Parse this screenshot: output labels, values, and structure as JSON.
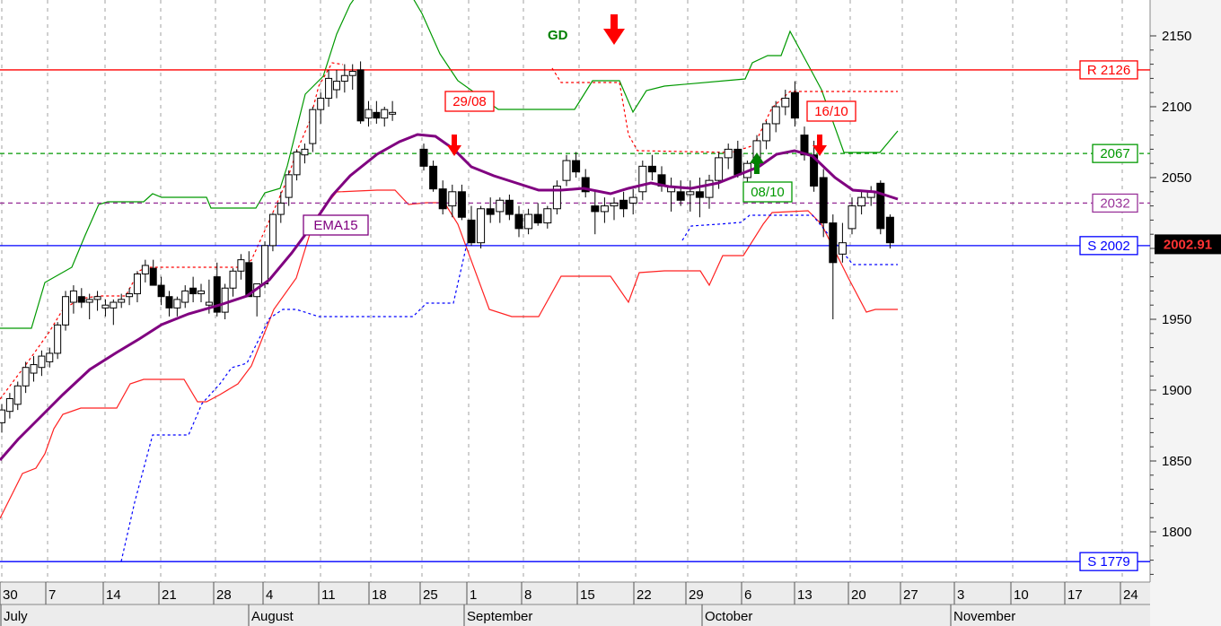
{
  "chart_data": {
    "type": "candlestick",
    "instrument_title": "GD",
    "ylim": [
      1770,
      2175
    ],
    "y_ticks": [
      1800,
      1850,
      1900,
      1950,
      2000,
      2050,
      2100,
      2150
    ],
    "x_day_labels": [
      "30",
      "7",
      "14",
      "21",
      "28",
      "4",
      "11",
      "18",
      "25",
      "1",
      "8",
      "15",
      "22",
      "29",
      "6",
      "13",
      "20",
      "27",
      "3",
      "10",
      "17",
      "24"
    ],
    "x_month_labels": [
      "July",
      "August",
      "September",
      "October",
      "November"
    ],
    "last_price_label": "2002.91",
    "horizontal_levels": [
      {
        "label": "R 2126",
        "value": 2126,
        "color": "#ff0000",
        "style": "solid"
      },
      {
        "label": "2067",
        "value": 2067,
        "color": "#009900",
        "style": "dashed"
      },
      {
        "label": "2032",
        "value": 2032,
        "color": "#993399",
        "style": "dashed"
      },
      {
        "label": "S 2002",
        "value": 2002,
        "color": "#0000ff",
        "style": "solid"
      },
      {
        "label": "S 1779",
        "value": 1779,
        "color": "#0000ff",
        "style": "solid"
      }
    ],
    "annotations": [
      {
        "label": "29/08",
        "color": "#ff0000"
      },
      {
        "label": "16/10",
        "color": "#ff0000"
      },
      {
        "label": "08/10",
        "color": "#009900"
      },
      {
        "label": "EMA15",
        "color": "#800080"
      }
    ],
    "signals": [
      {
        "direction": "down",
        "color": "#ff0000",
        "bar": 36
      },
      {
        "direction": "up",
        "color": "#008000",
        "bar": 63
      },
      {
        "direction": "down",
        "color": "#ff0000",
        "bar": 69
      }
    ],
    "ohlc": [
      [
        1877,
        1890,
        1870,
        1886
      ],
      [
        1885,
        1898,
        1880,
        1894
      ],
      [
        1890,
        1906,
        1886,
        1903
      ],
      [
        1903,
        1920,
        1898,
        1916
      ],
      [
        1912,
        1924,
        1906,
        1918
      ],
      [
        1916,
        1928,
        1910,
        1924
      ],
      [
        1920,
        1930,
        1916,
        1926
      ],
      [
        1926,
        1948,
        1922,
        1946
      ],
      [
        1946,
        1970,
        1942,
        1966
      ],
      [
        1962,
        1974,
        1954,
        1970
      ],
      [
        1966,
        1972,
        1958,
        1962
      ],
      [
        1962,
        1968,
        1950,
        1964
      ],
      [
        1964,
        1970,
        1956,
        1966
      ],
      [
        1958,
        1964,
        1952,
        1960
      ],
      [
        1958,
        1964,
        1946,
        1962
      ],
      [
        1962,
        1968,
        1958,
        1964
      ],
      [
        1966,
        1972,
        1960,
        1968
      ],
      [
        1968,
        1984,
        1962,
        1982
      ],
      [
        1982,
        1992,
        1976,
        1988
      ],
      [
        1986,
        1992,
        1974,
        1974
      ],
      [
        1974,
        1980,
        1960,
        1966
      ],
      [
        1966,
        1970,
        1952,
        1958
      ],
      [
        1958,
        1966,
        1952,
        1964
      ],
      [
        1962,
        1974,
        1958,
        1970
      ],
      [
        1972,
        1980,
        1962,
        1968
      ],
      [
        1968,
        1975,
        1962,
        1970
      ],
      [
        1960,
        1978,
        1954,
        1962
      ],
      [
        1980,
        1990,
        1952,
        1955
      ],
      [
        1955,
        1975,
        1950,
        1972
      ],
      [
        1972,
        1986,
        1966,
        1984
      ],
      [
        1984,
        1996,
        1978,
        1992
      ],
      [
        1990,
        1998,
        1970,
        1966
      ],
      [
        1966,
        1975,
        1952,
        1975
      ],
      [
        1975,
        2005,
        1972,
        2002
      ],
      [
        2002,
        2025,
        1998,
        2024
      ],
      [
        2024,
        2040,
        2018,
        2032
      ],
      [
        2036,
        2055,
        2030,
        2052
      ],
      [
        2052,
        2070,
        2048,
        2068
      ],
      [
        2066,
        2074,
        2060,
        2070
      ],
      [
        2074,
        2100,
        2068,
        2098
      ],
      [
        2098,
        2110,
        2088,
        2106
      ],
      [
        2106,
        2126,
        2100,
        2120
      ],
      [
        2112,
        2126,
        2106,
        2118
      ],
      [
        2118,
        2130,
        2110,
        2122
      ],
      [
        2122,
        2130,
        2112,
        2125
      ],
      [
        2126,
        2132,
        2088,
        2090
      ],
      [
        2092,
        2104,
        2086,
        2098
      ],
      [
        2096,
        2104,
        2088,
        2092
      ],
      [
        2092,
        2100,
        2086,
        2098
      ],
      [
        2096,
        2104,
        2090,
        2096
      ]
    ]
  }
}
